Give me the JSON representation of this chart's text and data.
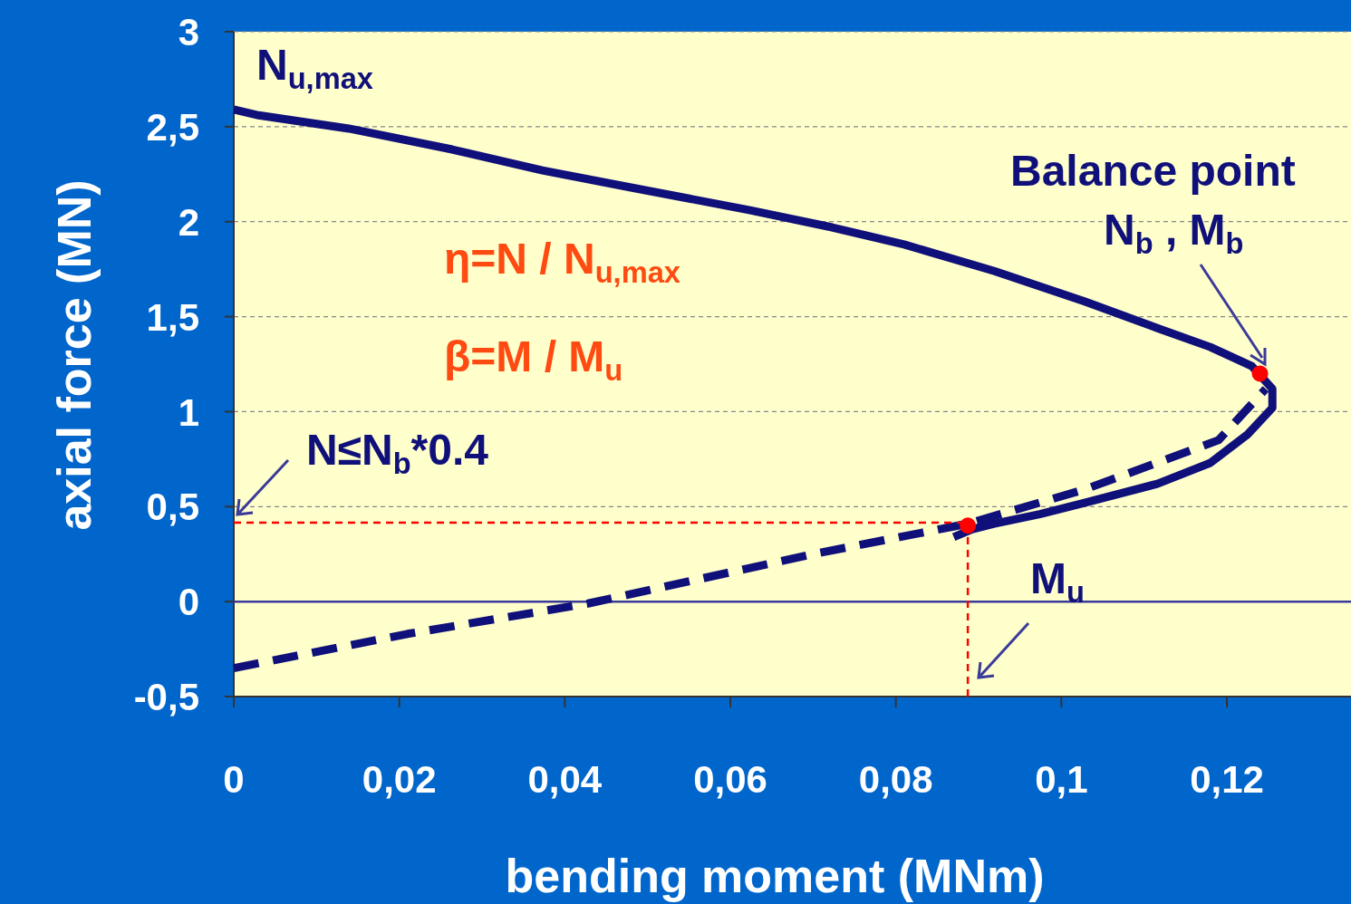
{
  "chart_data": {
    "type": "line",
    "xlabel": "bending moment (MNm)",
    "ylabel": "axial force (MN)",
    "xlim": [
      0,
      0.135
    ],
    "xticks": [
      {
        "value": 0,
        "label": "0"
      },
      {
        "value": 0.02,
        "label": "0,02"
      },
      {
        "value": 0.04,
        "label": "0,04"
      },
      {
        "value": 0.06,
        "label": "0,06"
      },
      {
        "value": 0.08,
        "label": "0,08"
      },
      {
        "value": 0.1,
        "label": "0,1"
      },
      {
        "value": 0.12,
        "label": "0,12"
      }
    ],
    "ylim": [
      -0.5,
      3
    ],
    "yticks": [
      {
        "value": -0.5,
        "label": "-0,5"
      },
      {
        "value": 0,
        "label": "0"
      },
      {
        "value": 0.5,
        "label": "0,5"
      },
      {
        "value": 1,
        "label": "1"
      },
      {
        "value": 1.5,
        "label": "1,5"
      },
      {
        "value": 2,
        "label": "2"
      },
      {
        "value": 2.5,
        "label": "2,5"
      },
      {
        "value": 3,
        "label": "3"
      }
    ],
    "grid": "y",
    "series": [
      {
        "color": "#10107a",
        "line_style": "solid",
        "marker": "none",
        "x": [
          0,
          0.003,
          0.0139,
          0.0264,
          0.0373,
          0.048,
          0.0624,
          0.0723,
          0.081,
          0.0919,
          0.1028,
          0.1116,
          0.118,
          0.123,
          0.1255,
          0.1255,
          0.1225,
          0.118,
          0.1116,
          0.1028,
          0.0974,
          0.0919,
          0.0892,
          0.087
        ],
        "values": [
          2.59,
          2.56,
          2.49,
          2.38,
          2.27,
          2.18,
          2.06,
          1.97,
          1.88,
          1.74,
          1.58,
          1.44,
          1.34,
          1.24,
          1.12,
          1.02,
          0.88,
          0.73,
          0.62,
          0.52,
          0.46,
          0.41,
          0.38,
          0.34
        ]
      },
      {
        "type": "line",
        "color": "#10107a",
        "line_style": "dashed",
        "marker": "none",
        "x": [
          0,
          0.021,
          0.0428,
          0.07,
          0.0887,
          0.1028,
          0.119,
          0.1247
        ],
        "values": [
          -0.35,
          -0.17,
          -0.01,
          0.25,
          0.41,
          0.59,
          0.85,
          1.12
        ]
      },
      {
        "type": "line",
        "color": "#ff0000",
        "line_style": "dashed",
        "marker": "none",
        "x": [
          0,
          0.0887,
          0.0887
        ],
        "values": [
          0.415,
          0.415,
          -0.5
        ]
      },
      {
        "type": "scatter",
        "color": "#ff0000",
        "marker": "circle",
        "x": [
          0.124,
          0.0887
        ],
        "values": [
          1.2,
          0.4
        ]
      }
    ],
    "ref_lines": [
      {
        "axis": "y",
        "value": 0,
        "color": "#3a3a9a",
        "line_style": "solid"
      }
    ],
    "annotations": [
      "N$_{u,max}$",
      "Balance point",
      "N$_{b}$ , M$_{b}$",
      "η=N / N$_{u,max}$",
      "β=M / M$_{u}$",
      "N≤N$_{b}$*0.4",
      "M$_{u}$"
    ]
  }
}
